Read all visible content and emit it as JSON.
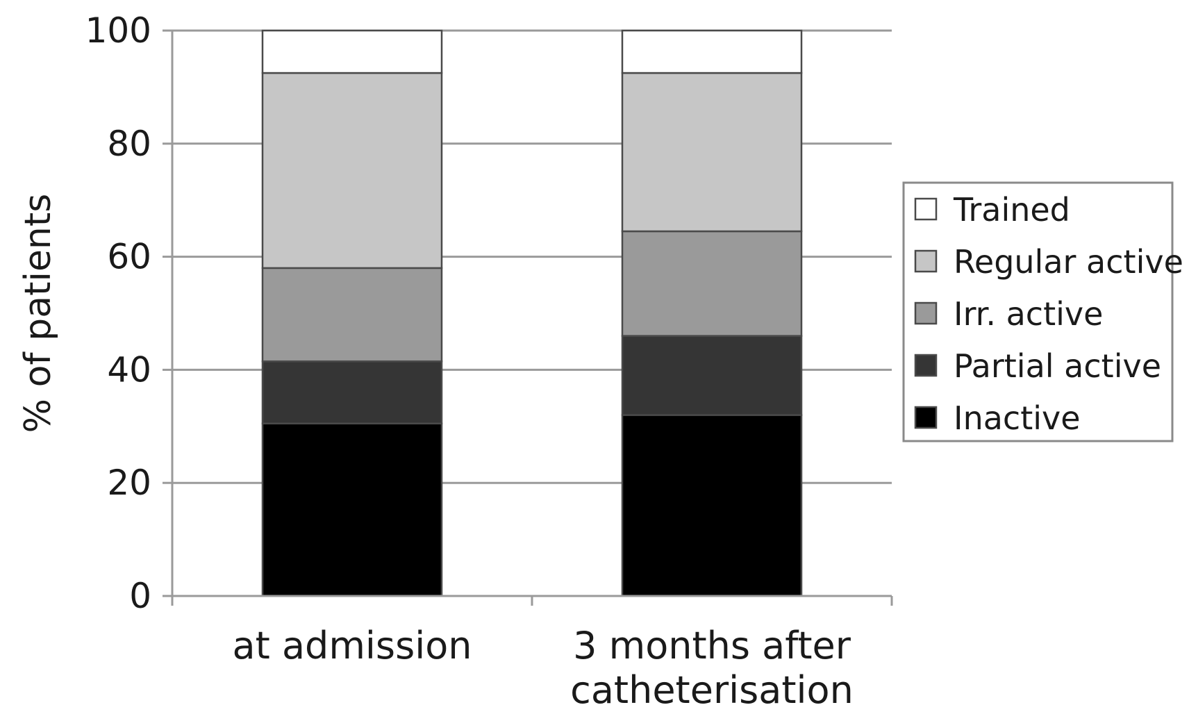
{
  "chart_data": {
    "type": "bar",
    "stacked": true,
    "categories": [
      [
        "at admission"
      ],
      [
        "3 months after",
        "catheterisation"
      ]
    ],
    "ylabel": "% of patients",
    "ylim": [
      0,
      100
    ],
    "yticks": [
      0,
      20,
      40,
      60,
      80,
      100
    ],
    "grid": true,
    "legend_position": "right",
    "series": [
      {
        "name": "Inactive",
        "values": [
          30.5,
          32
        ],
        "color": "#000000"
      },
      {
        "name": "Partial active",
        "values": [
          11,
          14
        ],
        "color": "#353535"
      },
      {
        "name": "Irr. active",
        "values": [
          16.5,
          18.5
        ],
        "color": "#9a9a9a"
      },
      {
        "name": "Regular active",
        "values": [
          34.5,
          28
        ],
        "color": "#c6c6c6"
      },
      {
        "name": "Trained",
        "values": [
          7.5,
          7.5
        ],
        "color": "#ffffff"
      }
    ],
    "legend_order": [
      "Trained",
      "Regular active",
      "Irr. active",
      "Partial active",
      "Inactive"
    ]
  }
}
